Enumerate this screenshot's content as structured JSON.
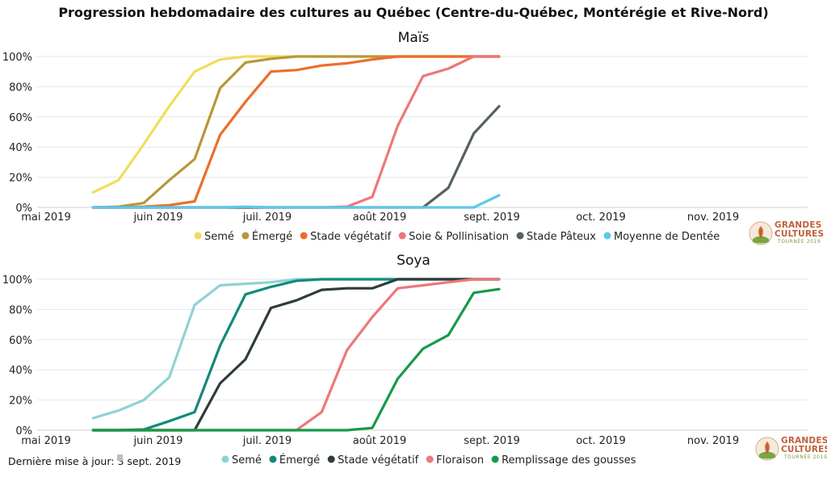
{
  "title": "Progression hebdomadaire des cultures au Québec (Centre-du-Québec, Montérégie et Rive-Nord)",
  "footer": "Dernière mise à jour: 3 sept. 2019",
  "logo": {
    "line1": "GRANDES",
    "line2": "CULTURES",
    "line3": "TOURNÉE 2019"
  },
  "chart_data": [
    {
      "type": "line",
      "title": "Maïs",
      "x_ticks": [
        "mai 2019",
        "juin 2019",
        "juil. 2019",
        "août 2019",
        "sept. 2019",
        "oct. 2019",
        "nov. 2019"
      ],
      "y_ticks": [
        "0%",
        "20%",
        "40%",
        "60%",
        "80%",
        "100%"
      ],
      "ylim": [
        0,
        100
      ],
      "xlim": [
        "2019-05-01",
        "2019-11-30"
      ],
      "grid": true,
      "legend_position": "bottom",
      "x": [
        "2019-05-14",
        "2019-05-21",
        "2019-05-28",
        "2019-06-04",
        "2019-06-11",
        "2019-06-18",
        "2019-06-25",
        "2019-07-02",
        "2019-07-09",
        "2019-07-16",
        "2019-07-23",
        "2019-07-30",
        "2019-08-06",
        "2019-08-13",
        "2019-08-20",
        "2019-08-27",
        "2019-09-03"
      ],
      "series": [
        {
          "name": "Semé",
          "color": "#f3dc5a",
          "values": [
            10,
            18,
            42,
            67,
            90,
            98,
            100,
            100,
            100,
            100,
            100,
            100,
            100,
            100,
            100,
            100,
            100
          ]
        },
        {
          "name": "Émergé",
          "color": "#b8973a",
          "values": [
            0,
            0.5,
            3,
            18,
            32,
            79,
            96,
            98.5,
            100,
            100,
            100,
            100,
            100,
            100,
            100,
            100,
            100
          ]
        },
        {
          "name": "Stade végétatif",
          "color": "#ec6e2a",
          "values": [
            0,
            0,
            0.5,
            1.5,
            4,
            48,
            70,
            90,
            91,
            94,
            95.5,
            98,
            100,
            100,
            100,
            100,
            100
          ]
        },
        {
          "name": "Soie & Pollinisation",
          "color": "#ee7779",
          "values": [
            0,
            0,
            0,
            0,
            0,
            0,
            0,
            0,
            0,
            0,
            0.5,
            7,
            54,
            87,
            92,
            100,
            100
          ]
        },
        {
          "name": "Stade Pâteux",
          "color": "#55625f",
          "values": [
            0,
            0,
            0,
            0,
            0,
            0,
            0,
            0,
            0,
            0,
            0,
            0,
            0,
            0,
            13,
            49,
            67
          ]
        },
        {
          "name": "Moyenne de Dentée",
          "color": "#5ec8ea",
          "values": [
            0,
            0,
            0,
            0,
            0,
            0,
            0.5,
            0,
            0,
            0,
            0,
            0,
            0,
            0,
            0,
            0,
            8
          ]
        }
      ]
    },
    {
      "type": "line",
      "title": "Soya",
      "x_ticks": [
        "mai 2019",
        "juin 2019",
        "juil. 2019",
        "août 2019",
        "sept. 2019",
        "oct. 2019",
        "nov. 2019"
      ],
      "y_ticks": [
        "0%",
        "20%",
        "40%",
        "60%",
        "80%",
        "100%"
      ],
      "ylim": [
        0,
        100
      ],
      "xlim": [
        "2019-05-01",
        "2019-11-30"
      ],
      "grid": true,
      "legend_position": "bottom",
      "x": [
        "2019-05-14",
        "2019-05-21",
        "2019-05-28",
        "2019-06-04",
        "2019-06-11",
        "2019-06-18",
        "2019-06-25",
        "2019-07-02",
        "2019-07-09",
        "2019-07-16",
        "2019-07-23",
        "2019-07-30",
        "2019-08-06",
        "2019-08-13",
        "2019-08-20",
        "2019-08-27",
        "2019-09-03"
      ],
      "series": [
        {
          "name": "Semé",
          "color": "#8fd2d4",
          "values": [
            8,
            13,
            20,
            35,
            83,
            96,
            97,
            98,
            100,
            100,
            100,
            100,
            100,
            100,
            100,
            100,
            100
          ]
        },
        {
          "name": "Émergé",
          "color": "#13897a",
          "values": [
            0,
            0,
            0.5,
            6,
            12,
            56,
            90,
            95,
            99,
            100,
            100,
            100,
            100,
            100,
            100,
            100,
            100
          ]
        },
        {
          "name": "Stade végétatif",
          "color": "#2f3c3a",
          "values": [
            0,
            0,
            0,
            0,
            0,
            31,
            47,
            81,
            86,
            93,
            94,
            94,
            100,
            100,
            100,
            100,
            100
          ]
        },
        {
          "name": "Floraison",
          "color": "#ee7779",
          "values": [
            0,
            0,
            0,
            0,
            0,
            0,
            0,
            0,
            0,
            12,
            53,
            75,
            94,
            96,
            98,
            100,
            100
          ]
        },
        {
          "name": "Remplissage des gousses",
          "color": "#159a4a",
          "values": [
            0,
            0,
            0,
            0,
            0,
            0,
            0,
            0,
            0,
            0,
            0,
            1.5,
            34,
            54,
            63,
            91,
            93.5
          ]
        }
      ]
    }
  ]
}
